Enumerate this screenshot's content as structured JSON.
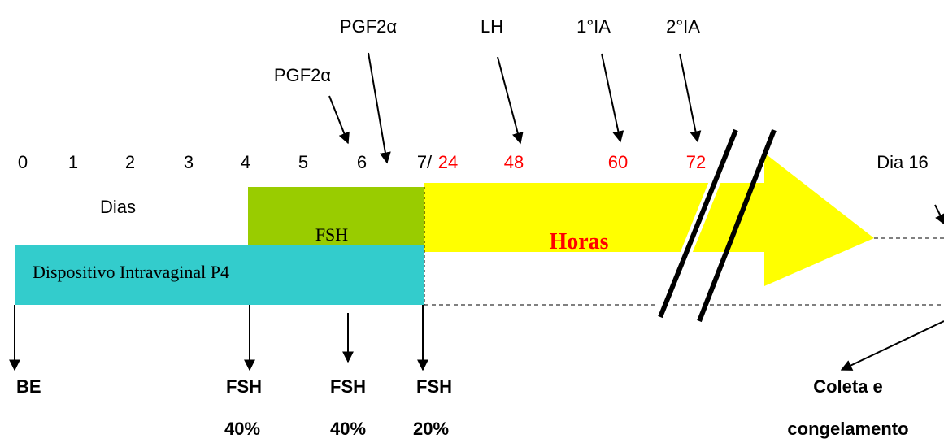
{
  "top_labels": [
    "PGF2α",
    "PGF2α",
    "LH",
    "1°IA",
    "2°IA"
  ],
  "days": [
    "0",
    "1",
    "2",
    "3",
    "4",
    "5",
    "6",
    "7/"
  ],
  "hours": [
    "24",
    "48",
    "60",
    "72"
  ],
  "end_label": "Dia 16",
  "days_label": "Dias",
  "fsh_box": "FSH",
  "hours_label": "Horas",
  "device": "Dispositivo Intravaginal P4",
  "bottom": [
    {
      "label": "BE"
    },
    {
      "label": "FSH",
      "dose": "40%"
    },
    {
      "label": "FSH",
      "dose": "40%"
    },
    {
      "label": "FSH",
      "dose": "20%"
    }
  ],
  "collection": [
    "Coleta e",
    "congelamento"
  ]
}
